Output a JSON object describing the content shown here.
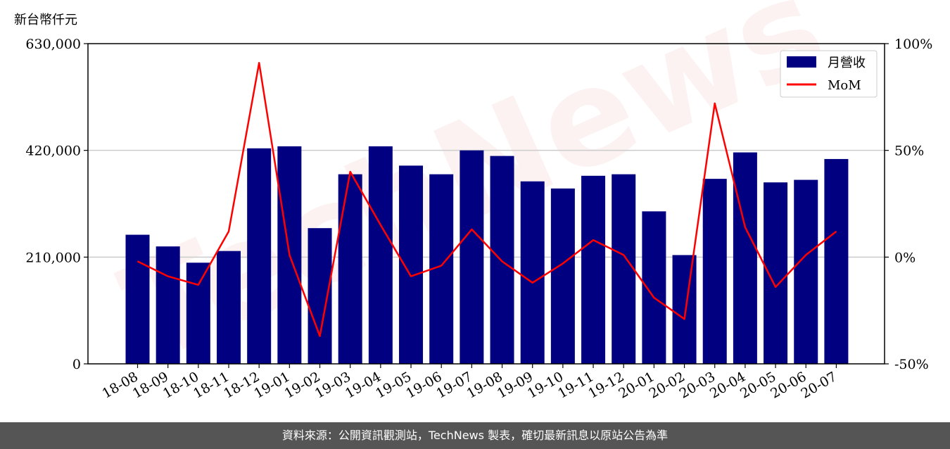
{
  "watermark": "TechNews",
  "footer": {
    "source": "資料來源：公開資訊觀測站，TechNews 製表，確切最新訊息以原站公告為準"
  },
  "colors": {
    "bar": "#000080",
    "line": "#ff0000",
    "grid": "#cccccc",
    "footer_bg": "#555555"
  },
  "chart_data": {
    "type": "bar",
    "unit_label": "新台幣仟元",
    "categories": [
      "18-08",
      "18-09",
      "18-10",
      "18-11",
      "18-12",
      "19-01",
      "19-02",
      "19-03",
      "19-04",
      "19-05",
      "19-06",
      "19-07",
      "19-08",
      "19-09",
      "19-10",
      "19-11",
      "19-12",
      "20-01",
      "20-02",
      "20-03",
      "20-04",
      "20-05",
      "20-06",
      "20-07"
    ],
    "series": [
      {
        "name": "月營收",
        "type": "bar",
        "axis": "left",
        "values": [
          254000,
          231000,
          199000,
          222000,
          424000,
          428000,
          267000,
          373000,
          428000,
          390000,
          373000,
          420000,
          409000,
          359000,
          345000,
          370000,
          373000,
          300000,
          214000,
          364000,
          416000,
          357000,
          362000,
          403000
        ]
      },
      {
        "name": "MoM",
        "type": "line",
        "axis": "right",
        "values": [
          -2,
          -9,
          -13,
          12,
          91,
          1,
          -37,
          40,
          15,
          -9,
          -4,
          13,
          -2,
          -12,
          -3,
          8,
          1,
          -19,
          -29,
          72,
          14,
          -14,
          1,
          12
        ]
      }
    ],
    "y_left": {
      "min": 0,
      "max": 630000,
      "ticks": [
        0,
        210000,
        420000,
        630000
      ],
      "tick_labels": [
        "0",
        "210,000",
        "420,000",
        "630,000"
      ]
    },
    "y_right": {
      "min": -50,
      "max": 100,
      "ticks": [
        -50,
        0,
        50,
        100
      ],
      "tick_labels": [
        "-50%",
        "0%",
        "50%",
        "100%"
      ]
    },
    "legend_position": "top-right",
    "grid": "horizontal"
  }
}
